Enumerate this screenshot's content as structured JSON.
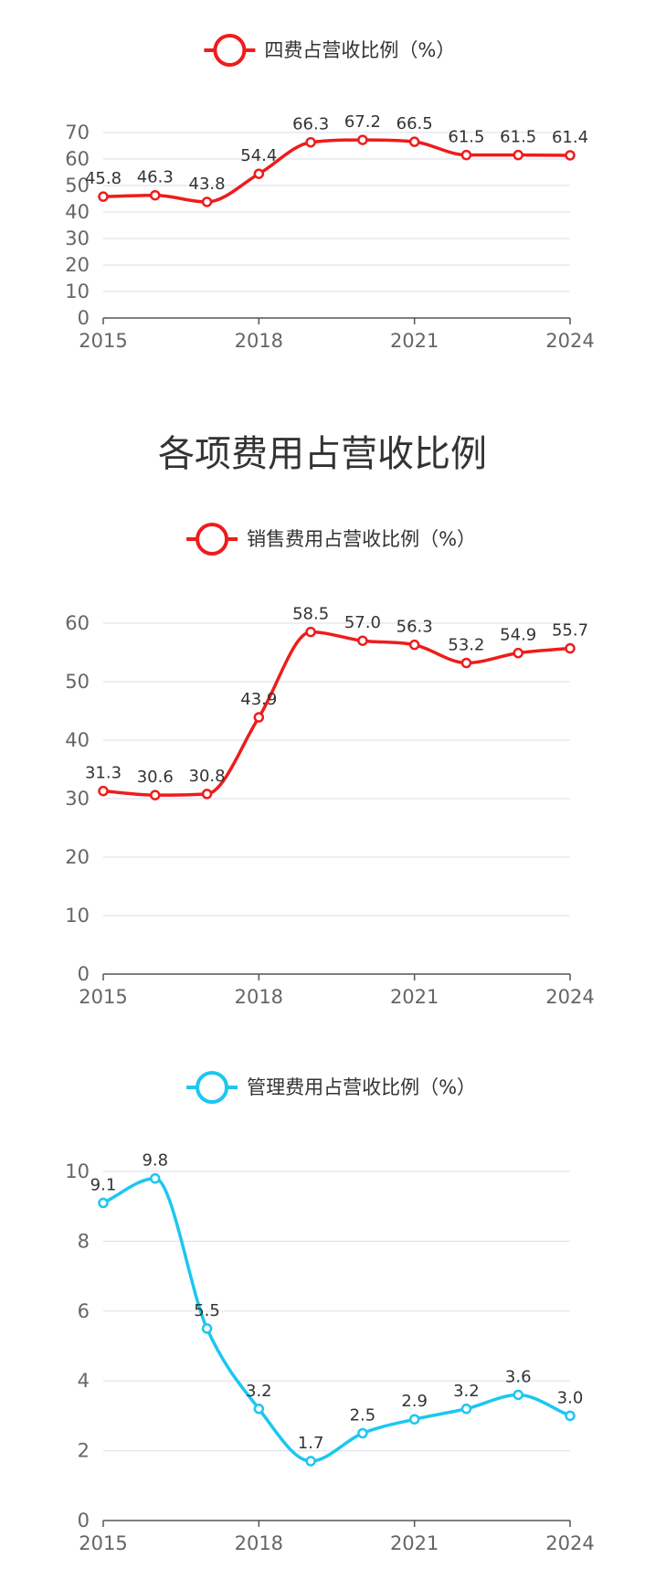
{
  "section_title": "各项费用占营收比例",
  "colors": {
    "red": "#ee1c1c",
    "cyan": "#1cc7f0"
  },
  "chart_data": [
    {
      "type": "line",
      "legend": "四费占营收比例（%）",
      "color": "#ee1c1c",
      "x": [
        2015,
        2016,
        2017,
        2018,
        2019,
        2020,
        2021,
        2022,
        2023,
        2024
      ],
      "x_tick_labels": [
        "2015",
        "2018",
        "2021",
        "2024"
      ],
      "y_ticks": [
        0,
        10,
        20,
        30,
        40,
        50,
        60,
        70
      ],
      "ylim": [
        0,
        70
      ],
      "values": [
        45.8,
        46.3,
        43.8,
        54.4,
        66.3,
        67.2,
        66.5,
        61.5,
        61.5,
        61.4
      ],
      "labels": [
        "45.8",
        "46.3",
        "43.8",
        "54.4",
        "66.3",
        "67.2",
        "66.5",
        "61.5",
        "61.5",
        "61.4"
      ],
      "grid": true,
      "smooth": true
    },
    {
      "type": "line",
      "legend": "销售费用占营收比例（%）",
      "color": "#ee1c1c",
      "x": [
        2015,
        2016,
        2017,
        2018,
        2019,
        2020,
        2021,
        2022,
        2023,
        2024
      ],
      "x_tick_labels": [
        "2015",
        "2018",
        "2021",
        "2024"
      ],
      "y_ticks": [
        0,
        10,
        20,
        30,
        40,
        50,
        60
      ],
      "ylim": [
        0,
        60
      ],
      "values": [
        31.3,
        30.6,
        30.8,
        43.9,
        58.5,
        57.0,
        56.3,
        53.2,
        54.9,
        55.7
      ],
      "labels": [
        "31.3",
        "30.6",
        "30.8",
        "43.9",
        "58.5",
        "57.0",
        "56.3",
        "53.2",
        "54.9",
        "55.7"
      ],
      "grid": true,
      "smooth": true
    },
    {
      "type": "line",
      "legend": "管理费用占营收比例（%）",
      "color": "#1cc7f0",
      "x": [
        2015,
        2016,
        2017,
        2018,
        2019,
        2020,
        2021,
        2022,
        2023,
        2024
      ],
      "x_tick_labels": [
        "2015",
        "2018",
        "2021",
        "2024"
      ],
      "y_ticks": [
        0,
        2,
        4,
        6,
        8,
        10
      ],
      "ylim": [
        0,
        10
      ],
      "values": [
        9.1,
        9.8,
        5.5,
        3.2,
        1.7,
        2.5,
        2.9,
        3.2,
        3.6,
        3.0
      ],
      "labels": [
        "9.1",
        "9.8",
        "5.5",
        "3.2",
        "1.7",
        "2.5",
        "2.9",
        "3.2",
        "3.6",
        "3.0"
      ],
      "grid": true,
      "smooth": true
    }
  ]
}
